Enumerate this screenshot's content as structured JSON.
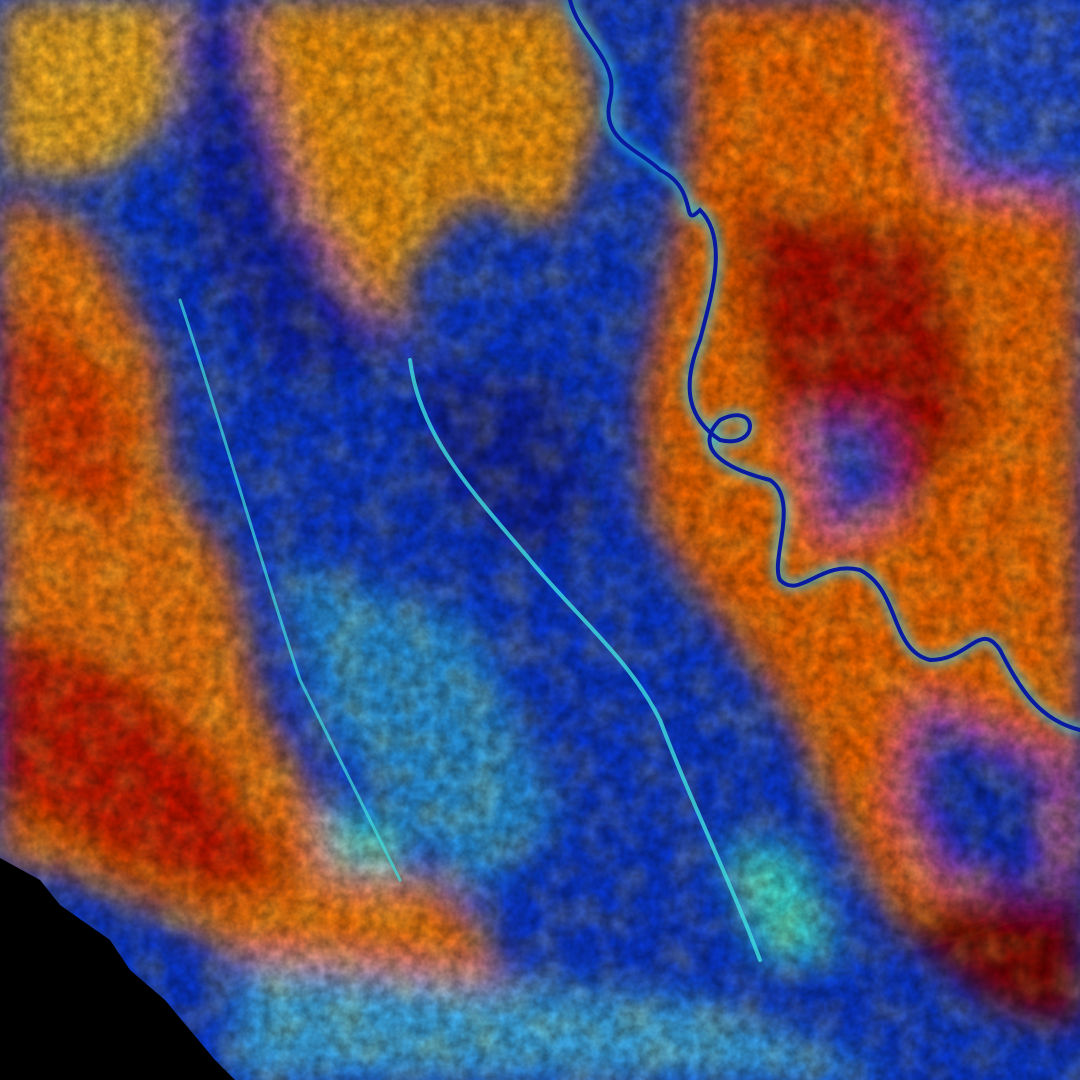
{
  "image": {
    "kind": "false-color satellite raster",
    "colormap": "jet",
    "palette": {
      "low": "#00008f",
      "blue": "#0a3ad8",
      "cyan": "#30e0f0",
      "yellow": "#f5f020",
      "orange": "#ff8a10",
      "red": "#e01a00",
      "high": "#800000",
      "nodata": "#000000"
    },
    "features": [
      "meandering-river",
      "floodplain",
      "no-data-corner"
    ]
  }
}
